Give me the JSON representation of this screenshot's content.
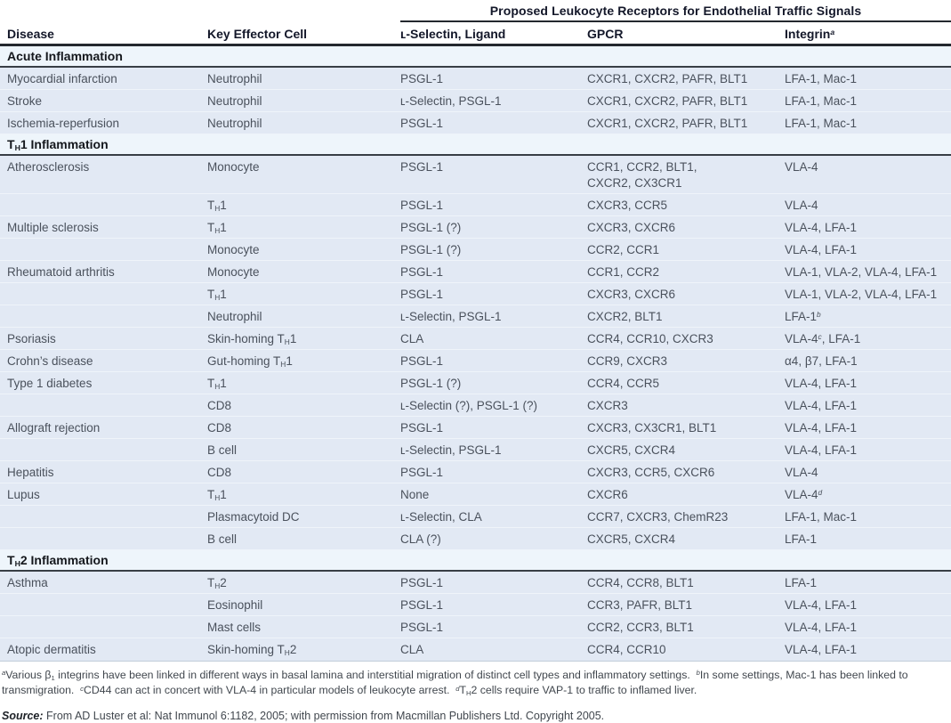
{
  "header": {
    "span_title": "Proposed Leukocyte Receptors for Endothelial Traffic Signals",
    "columns": [
      "Disease",
      "Key Effector Cell",
      "ʟ-Selectin, Ligand",
      "GPCR",
      "Integrin^a^"
    ]
  },
  "sections": [
    {
      "title": "Acute Inflammation",
      "rows": [
        [
          "Myocardial infarction",
          "Neutrophil",
          "PSGL-1",
          "CXCR1, CXCR2, PAFR, BLT1",
          "LFA-1, Mac-1"
        ],
        [
          "Stroke",
          "Neutrophil",
          "ʟ-Selectin, PSGL-1",
          "CXCR1, CXCR2, PAFR, BLT1",
          "LFA-1, Mac-1"
        ],
        [
          "Ischemia-reperfusion",
          "Neutrophil",
          "PSGL-1",
          "CXCR1, CXCR2, PAFR, BLT1",
          "LFA-1, Mac-1"
        ]
      ]
    },
    {
      "title": "T~H~1 Inflammation",
      "rows": [
        [
          "Atherosclerosis",
          "Monocyte",
          "PSGL-1",
          "CCR1, CCR2, BLT1,\nCXCR2, CX3CR1",
          "VLA-4"
        ],
        [
          "",
          "T~H~1",
          "PSGL-1",
          "CXCR3, CCR5",
          "VLA-4"
        ],
        [
          "Multiple sclerosis",
          "T~H~1",
          "PSGL-1 (?)",
          "CXCR3, CXCR6",
          "VLA-4, LFA-1"
        ],
        [
          "",
          "Monocyte",
          "PSGL-1 (?)",
          "CCR2, CCR1",
          "VLA-4, LFA-1"
        ],
        [
          "Rheumatoid arthritis",
          "Monocyte",
          "PSGL-1",
          "CCR1, CCR2",
          "VLA-1, VLA-2, VLA-4, LFA-1"
        ],
        [
          "",
          "T~H~1",
          "PSGL-1",
          "CXCR3, CXCR6",
          "VLA-1, VLA-2, VLA-4, LFA-1"
        ],
        [
          "",
          "Neutrophil",
          "ʟ-Selectin, PSGL-1",
          "CXCR2, BLT1",
          "LFA-1^b^"
        ],
        [
          "Psoriasis",
          "Skin-homing T~H~1",
          "CLA",
          "CCR4, CCR10, CXCR3",
          "VLA-4^c^, LFA-1"
        ],
        [
          "Crohn’s disease",
          "Gut-homing T~H~1",
          "PSGL-1",
          "CCR9, CXCR3",
          "α4, β7, LFA-1"
        ],
        [
          "Type 1 diabetes",
          "T~H~1",
          "PSGL-1 (?)",
          "CCR4, CCR5",
          "VLA-4, LFA-1"
        ],
        [
          "",
          "CD8",
          "ʟ-Selectin (?), PSGL-1 (?)",
          "CXCR3",
          "VLA-4, LFA-1"
        ],
        [
          "Allograft rejection",
          "CD8",
          "PSGL-1",
          "CXCR3, CX3CR1, BLT1",
          "VLA-4, LFA-1"
        ],
        [
          "",
          "B cell",
          "ʟ-Selectin, PSGL-1",
          "CXCR5, CXCR4",
          "VLA-4, LFA-1"
        ],
        [
          "Hepatitis",
          "CD8",
          "PSGL-1",
          "CXCR3, CCR5, CXCR6",
          "VLA-4"
        ],
        [
          "Lupus",
          "T~H~1",
          "None",
          "CXCR6",
          "VLA-4^d^"
        ],
        [
          "",
          "Plasmacytoid DC",
          "ʟ-Selectin, CLA",
          "CCR7, CXCR3, ChemR23",
          "LFA-1, Mac-1"
        ],
        [
          "",
          "B cell",
          "CLA (?)",
          "CXCR5, CXCR4",
          "LFA-1"
        ]
      ]
    },
    {
      "title": "T~H~2 Inflammation",
      "rows": [
        [
          "Asthma",
          "T~H~2",
          "PSGL-1",
          "CCR4, CCR8, BLT1",
          "LFA-1"
        ],
        [
          "",
          "Eosinophil",
          "PSGL-1",
          "CCR3, PAFR, BLT1",
          "VLA-4, LFA-1"
        ],
        [
          "",
          "Mast cells",
          "PSGL-1",
          "CCR2, CCR3, BLT1",
          "VLA-4, LFA-1"
        ],
        [
          "Atopic dermatitis",
          "Skin-homing T~H~2",
          "CLA",
          "CCR4, CCR10",
          "VLA-4, LFA-1"
        ]
      ]
    }
  ],
  "footnotes": "^a^Various β~1~ integrins have been linked in different ways in basal lamina and interstitial migration of distinct cell types and inflammatory settings.  ^b^In some settings, Mac-1 has been linked to transmigration.  ^c^CD44 can act in concert with VLA-4 in particular models of leukocyte arrest.  ^d^T~H~2 cells require VAP-1 to traffic to inflamed liver.",
  "source": {
    "label": "Source:",
    "text": " From AD Luster et al: Nat Immunol 6:1182, 2005; with permission from Macmillan Publishers Ltd. Copyright 2005."
  },
  "colors": {
    "row-bg": "#e2e9f4",
    "section-bg": "#eef5fb",
    "rule-dark": "#24282e",
    "text-data": "#4a515c",
    "text-head": "#131729"
  }
}
